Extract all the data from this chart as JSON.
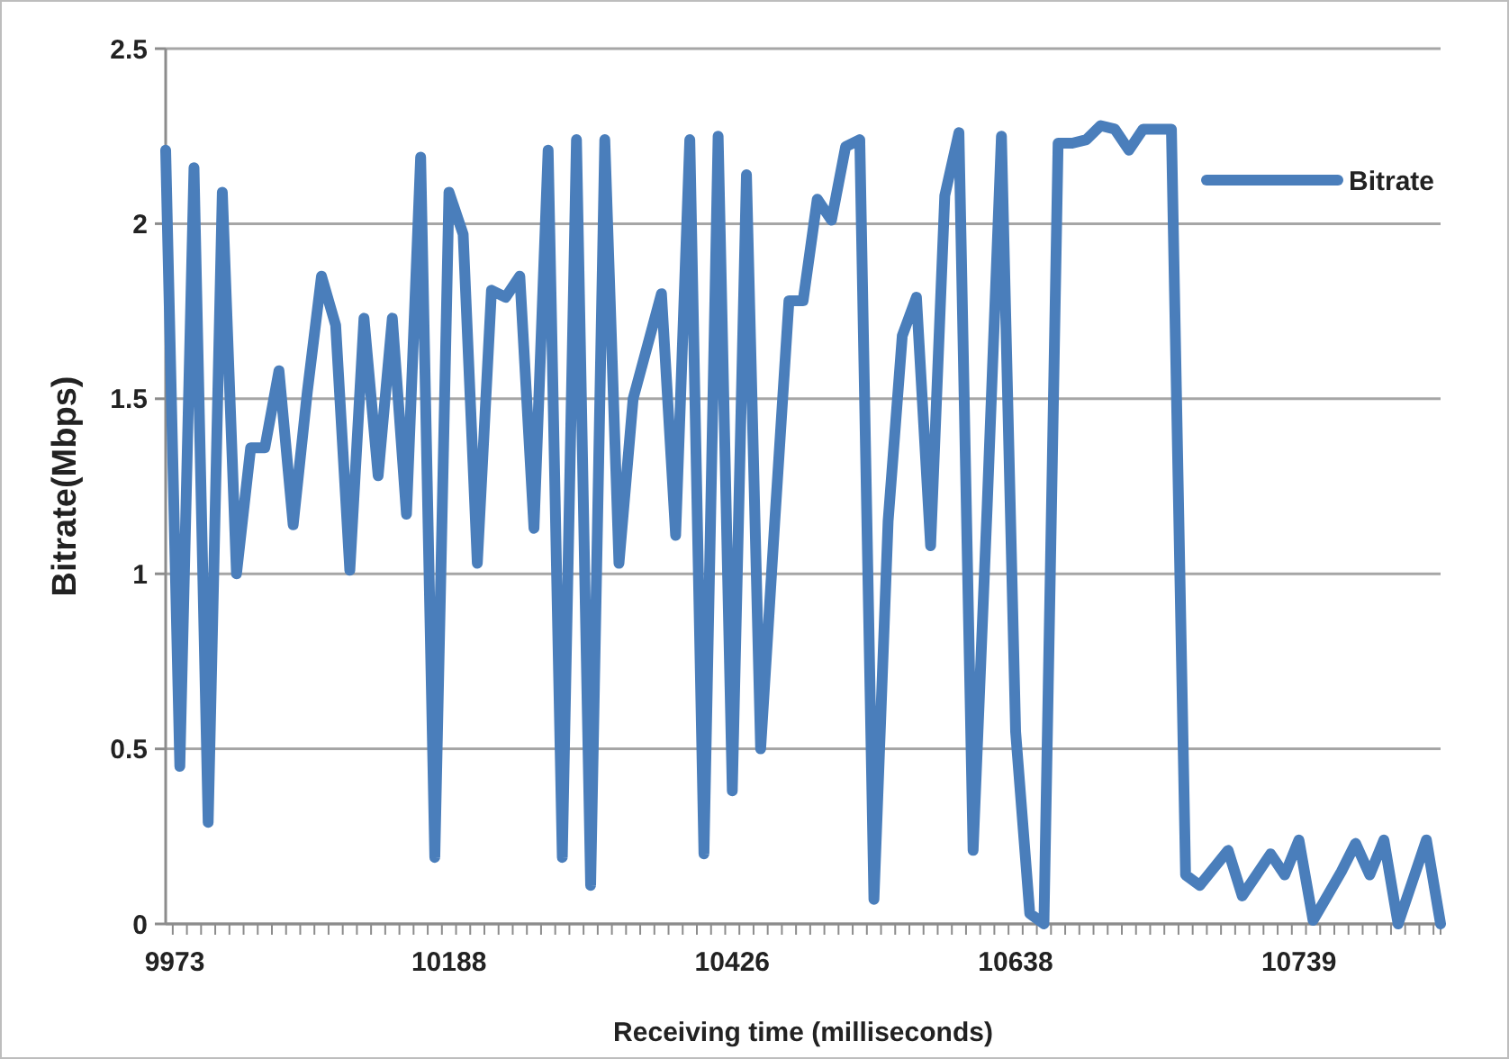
{
  "chart_data": {
    "type": "line",
    "xlabel": "Receiving time (milliseconds)",
    "ylabel": "Bitrate(Mbps)",
    "categories": [
      "9973",
      null,
      null,
      null,
      null,
      null,
      null,
      null,
      null,
      null,
      null,
      null,
      null,
      null,
      null,
      null,
      null,
      null,
      null,
      null,
      "10188",
      null,
      null,
      null,
      null,
      null,
      null,
      null,
      null,
      null,
      null,
      null,
      null,
      null,
      null,
      null,
      null,
      null,
      null,
      null,
      "10426",
      null,
      null,
      null,
      null,
      null,
      null,
      null,
      null,
      null,
      null,
      null,
      null,
      null,
      null,
      null,
      null,
      null,
      null,
      null,
      "10638",
      null,
      null,
      null,
      null,
      null,
      null,
      null,
      null,
      null,
      null,
      null,
      null,
      null,
      null,
      null,
      null,
      null,
      null,
      null,
      "10739",
      null,
      null,
      null,
      null,
      null,
      null,
      null,
      null,
      null,
      null
    ],
    "series": [
      {
        "name": "Bitrate",
        "color": "#4a7ebb",
        "values": [
          2.21,
          0.45,
          2.16,
          0.29,
          2.09,
          1.0,
          1.36,
          1.36,
          1.58,
          1.14,
          1.52,
          1.85,
          1.71,
          1.01,
          1.73,
          1.28,
          1.73,
          1.17,
          2.19,
          0.19,
          2.09,
          1.97,
          1.03,
          1.81,
          1.79,
          1.85,
          1.13,
          2.21,
          0.19,
          2.24,
          0.11,
          2.24,
          1.03,
          1.5,
          1.65,
          1.8,
          1.11,
          2.24,
          0.2,
          2.25,
          0.38,
          2.14,
          0.5,
          1.15,
          1.78,
          1.78,
          2.07,
          2.01,
          2.22,
          2.24,
          0.07,
          1.15,
          1.68,
          1.79,
          1.08,
          2.08,
          2.26,
          0.21,
          1.2,
          2.25,
          0.55,
          0.03,
          0.0,
          2.23,
          2.23,
          2.24,
          2.28,
          2.27,
          2.21,
          2.27,
          2.27,
          2.27,
          0.14,
          0.11,
          0.16,
          0.21,
          0.08,
          0.14,
          0.2,
          0.14,
          0.24,
          0.01,
          0.08,
          0.15,
          0.23,
          0.14,
          0.24,
          0.0,
          0.12,
          0.24,
          0.0
        ]
      }
    ],
    "ylim": [
      0,
      2.5
    ],
    "yticks": [
      0,
      0.5,
      1,
      1.5,
      2,
      2.5
    ],
    "grid": "y",
    "legend": "right",
    "line_style": "solid",
    "marker": "none"
  }
}
